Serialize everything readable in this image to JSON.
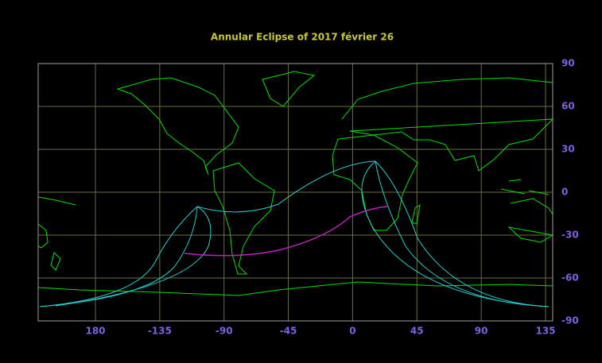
{
  "title": "Annular  Eclipse  of  2017  février  26",
  "map": {
    "x_axis_labels": [
      "180",
      "-135",
      "-90",
      "-45",
      "0",
      "45",
      "90",
      "135"
    ],
    "y_axis_labels": [
      "90",
      "60",
      "30",
      "0",
      "-30",
      "-60",
      "-90"
    ]
  }
}
